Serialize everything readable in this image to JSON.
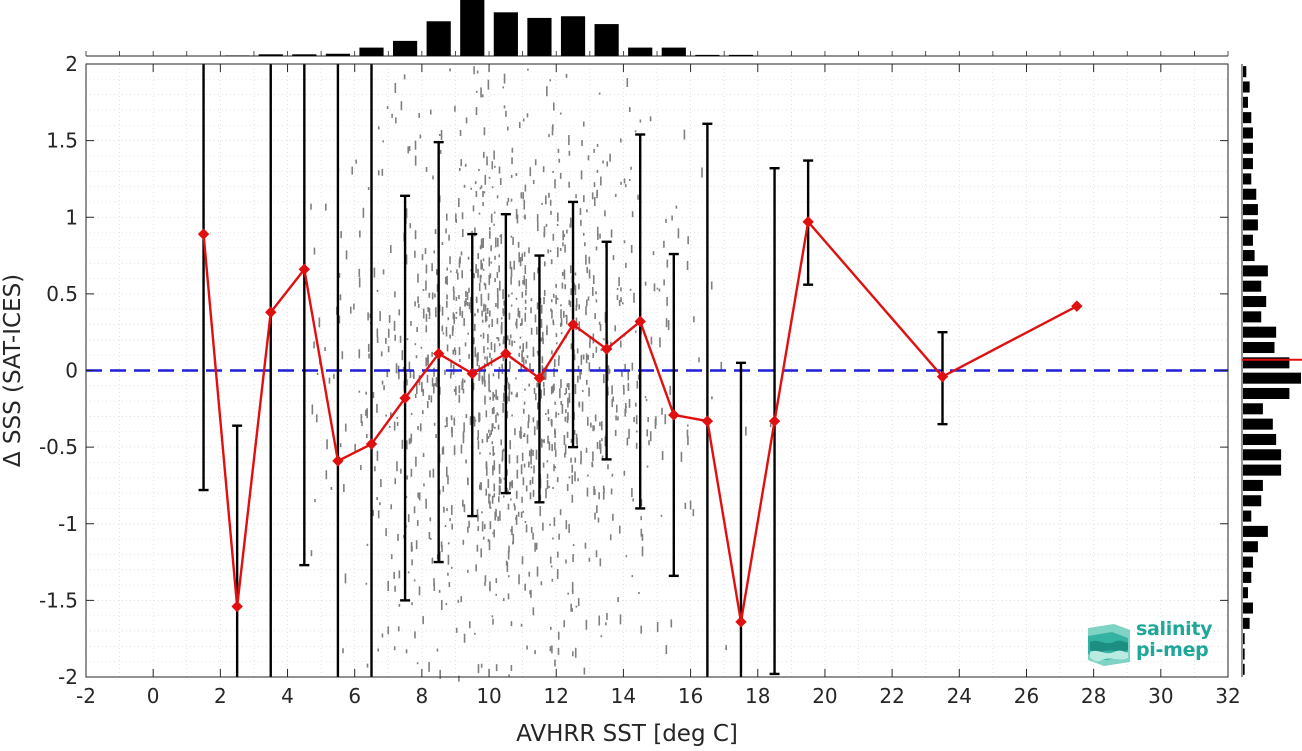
{
  "chart_data": {
    "type": "scatter",
    "xlabel": "AVHRR SST [deg C]",
    "ylabel": "Δ SSS (SAT-ICES)",
    "xlim": [
      -2,
      32
    ],
    "ylim": [
      -2,
      2
    ],
    "x_ticks": [
      "-2",
      "0",
      "2",
      "4",
      "6",
      "8",
      "10",
      "12",
      "14",
      "16",
      "18",
      "20",
      "22",
      "24",
      "26",
      "28",
      "30",
      "32"
    ],
    "y_ticks": [
      "-2",
      "-1.5",
      "-1",
      "-0.5",
      "0",
      "0.5",
      "1",
      "1.5",
      "2"
    ],
    "grid": true,
    "zero_line": {
      "y": 0,
      "color": "#1f1fd6",
      "style": "dashed"
    },
    "binned_mean": {
      "color": "#e01010",
      "marker": "diamond",
      "x": [
        1.5,
        2.5,
        3.5,
        4.5,
        5.5,
        6.5,
        7.5,
        8.5,
        9.5,
        10.5,
        11.5,
        12.5,
        13.5,
        14.5,
        15.5,
        16.5,
        17.5,
        18.5,
        19.5,
        23.5,
        27.5
      ],
      "mean": [
        0.89,
        -1.54,
        0.38,
        0.66,
        -0.59,
        -0.48,
        -0.18,
        0.11,
        -0.02,
        0.11,
        -0.05,
        0.3,
        0.14,
        0.32,
        -0.29,
        -0.33,
        -1.64,
        -0.33,
        0.97,
        -0.04,
        0.42
      ],
      "err_low": [
        -0.78,
        -2.3,
        -2.3,
        -1.27,
        -2.3,
        -2.3,
        -1.5,
        -1.25,
        -0.95,
        -0.8,
        -0.86,
        -0.5,
        -0.58,
        -0.9,
        -1.34,
        -2.3,
        -2.3,
        -1.98,
        0.56,
        -0.35,
        null
      ],
      "err_high": [
        2.3,
        -0.36,
        2.3,
        2.3,
        2.3,
        2.3,
        1.14,
        1.49,
        0.89,
        1.02,
        0.75,
        1.1,
        0.84,
        1.54,
        0.76,
        1.61,
        0.05,
        1.32,
        1.37,
        0.25,
        null
      ]
    },
    "scatter_cloud": {
      "color": "#7f7f7f",
      "description_ranges": {
        "x_center": 10.5,
        "x_spread": 3.2,
        "y_center": 0.0,
        "y_spread": 0.9
      }
    },
    "top_histogram": {
      "bin_centers": [
        2.5,
        3.5,
        4.5,
        5.5,
        6.5,
        7.5,
        8.5,
        9.5,
        10.5,
        11.5,
        12.5,
        13.5,
        14.5,
        15.5,
        16.5,
        17.5
      ],
      "counts": [
        1,
        3,
        3,
        4,
        15,
        27,
        62,
        100,
        78,
        68,
        71,
        57,
        15,
        15,
        2,
        2
      ]
    },
    "right_histogram": {
      "bin_centers": [
        1.95,
        1.85,
        1.75,
        1.65,
        1.55,
        1.45,
        1.35,
        1.25,
        1.15,
        1.05,
        0.95,
        0.85,
        0.75,
        0.65,
        0.55,
        0.45,
        0.35,
        0.25,
        0.15,
        0.05,
        -0.05,
        -0.15,
        -0.25,
        -0.35,
        -0.45,
        -0.55,
        -0.65,
        -0.75,
        -0.85,
        -0.95,
        -1.05,
        -1.15,
        -1.25,
        -1.35,
        -1.45,
        -1.55,
        -1.65,
        -1.75,
        -1.85,
        -1.95
      ],
      "counts": [
        2,
        4,
        3,
        5,
        6,
        6,
        6,
        5,
        8,
        9,
        9,
        6,
        7,
        15,
        11,
        14,
        11,
        20,
        19,
        28,
        35,
        28,
        12,
        18,
        20,
        23,
        23,
        12,
        11,
        5,
        15,
        9,
        6,
        5,
        3,
        6,
        4,
        1,
        1,
        1
      ],
      "mean_line": {
        "y": 0.07,
        "color": "#e01010"
      }
    }
  },
  "logo": {
    "line1": "salinity",
    "line2": "pi-mep"
  }
}
